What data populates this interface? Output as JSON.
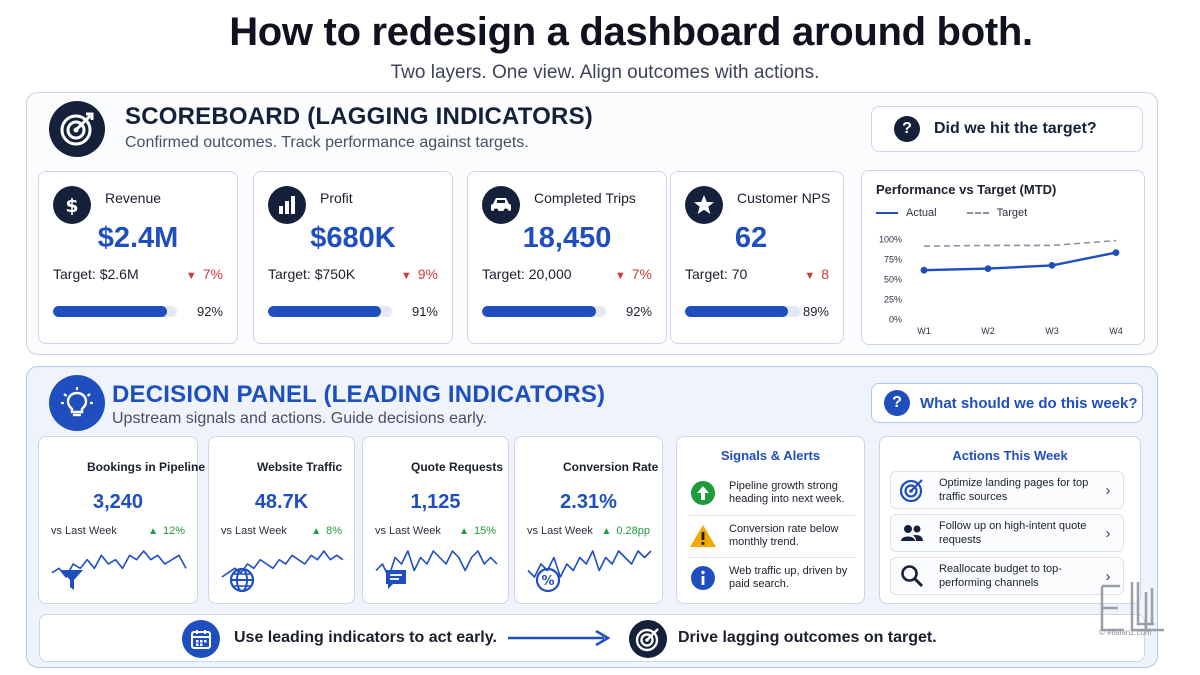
{
  "header": {
    "title": "How to redesign a dashboard around both.",
    "subtitle": "Two layers. One view. Align outcomes with actions."
  },
  "scoreboard": {
    "title": "SCOREBOARD (LAGGING INDICATORS)",
    "subtitle": "Confirmed outcomes. Track performance against targets.",
    "icon": "target-icon",
    "question": "Did we hit the target?",
    "question_badge": "?",
    "kpis": [
      {
        "name": "Revenue",
        "icon": "dollar-icon",
        "value": "$2.4M",
        "target": "Target: $2.6M",
        "delta": "7%",
        "progress": 0.92,
        "pct": "92%"
      },
      {
        "name": "Profit",
        "icon": "bar-chart-icon",
        "value": "$680K",
        "target": "Target: $750K",
        "delta": "9%",
        "progress": 0.91,
        "pct": "91%"
      },
      {
        "name": "Completed Trips",
        "icon": "car-icon",
        "value": "18,450",
        "target": "Target: 20,000",
        "delta": "7%",
        "progress": 0.92,
        "pct": "92%"
      },
      {
        "name": "Customer NPS",
        "icon": "star-icon",
        "value": "62",
        "target": "Target: 70",
        "delta": "8",
        "progress": 0.89,
        "pct": "89%"
      }
    ],
    "delta_symbol": "▼"
  },
  "chart_data": {
    "type": "line",
    "title": "Performance vs Target (MTD)",
    "categories": [
      "W1",
      "W2",
      "W3",
      "W4"
    ],
    "series": [
      {
        "name": "Actual",
        "values": [
          61,
          63,
          67,
          83
        ],
        "style": "solid",
        "color": "#1f4fbf"
      },
      {
        "name": "Target",
        "values": [
          91,
          92,
          92,
          98
        ],
        "style": "dashed",
        "color": "#8a90a0"
      }
    ],
    "yticks": [
      "100%",
      "75%",
      "50%",
      "25%",
      "0%"
    ],
    "ylim": [
      0,
      100
    ],
    "legend": "top-left",
    "grid": true
  },
  "decision": {
    "title": "DECISION PANEL (LEADING INDICATORS)",
    "subtitle": "Upstream signals and actions. Guide decisions early.",
    "icon": "lightbulb-icon",
    "question": "What should we do this week?",
    "question_badge": "?",
    "delta_symbol": "▲",
    "leads": [
      {
        "name": "Bookings in Pipeline",
        "icon": "funnel-icon",
        "value": "3,240",
        "vs": "vs Last Week",
        "delta": "12%",
        "spark": [
          5,
          6,
          4,
          7,
          6,
          8,
          6,
          9,
          7,
          8,
          6,
          9,
          8,
          10,
          8,
          9,
          7,
          8,
          9,
          6
        ]
      },
      {
        "name": "Website Traffic",
        "icon": "globe-icon",
        "value": "48.7K",
        "vs": "vs Last Week",
        "delta": "8%",
        "spark": [
          4,
          5,
          6,
          5,
          7,
          6,
          8,
          7,
          6,
          8,
          7,
          9,
          8,
          7,
          9,
          8,
          10,
          8,
          9,
          8
        ]
      },
      {
        "name": "Quote Requests",
        "icon": "chat-icon",
        "value": "1,125",
        "vs": "vs Last Week",
        "delta": "15%",
        "spark": [
          6,
          7,
          5,
          8,
          7,
          9,
          6,
          8,
          7,
          9,
          8,
          7,
          9,
          8,
          6,
          8,
          9,
          7,
          8,
          7
        ]
      },
      {
        "name": "Conversion Rate",
        "icon": "percent-icon",
        "value": "2.31%",
        "vs": "vs Last Week",
        "delta": "0.28pp",
        "spark": [
          6,
          5,
          7,
          6,
          8,
          5,
          7,
          6,
          8,
          7,
          9,
          6,
          8,
          7,
          9,
          8,
          7,
          9,
          8,
          9
        ]
      }
    ],
    "signals": {
      "title": "Signals & Alerts",
      "items": [
        {
          "icon": "arrow-up-icon",
          "text": "Pipeline growth strong heading into next week."
        },
        {
          "icon": "warning-icon",
          "text": "Conversion rate below monthly trend."
        },
        {
          "icon": "info-icon",
          "text": "Web traffic up, driven by paid search."
        }
      ]
    },
    "actions": {
      "title": "Actions This Week",
      "items": [
        {
          "icon": "target-icon",
          "text": "Optimize landing pages for top traffic sources"
        },
        {
          "icon": "people-icon",
          "text": "Follow up on high-intent quote requests"
        },
        {
          "icon": "search-icon",
          "text": "Reallocate budget to top-performing channels"
        }
      ],
      "chevron": "›"
    }
  },
  "footer": {
    "left": "Use leading indicators to act early.",
    "right": "Drive lagging outcomes on target.",
    "left_icon": "calendar-icon",
    "right_icon": "target-icon",
    "brand_url": "© elialanz.com"
  },
  "colors": {
    "navy": "#15203b",
    "blue": "#1f4fbf",
    "red": "#d23a3a",
    "green": "#1f9b3a",
    "amber": "#f2a900"
  }
}
